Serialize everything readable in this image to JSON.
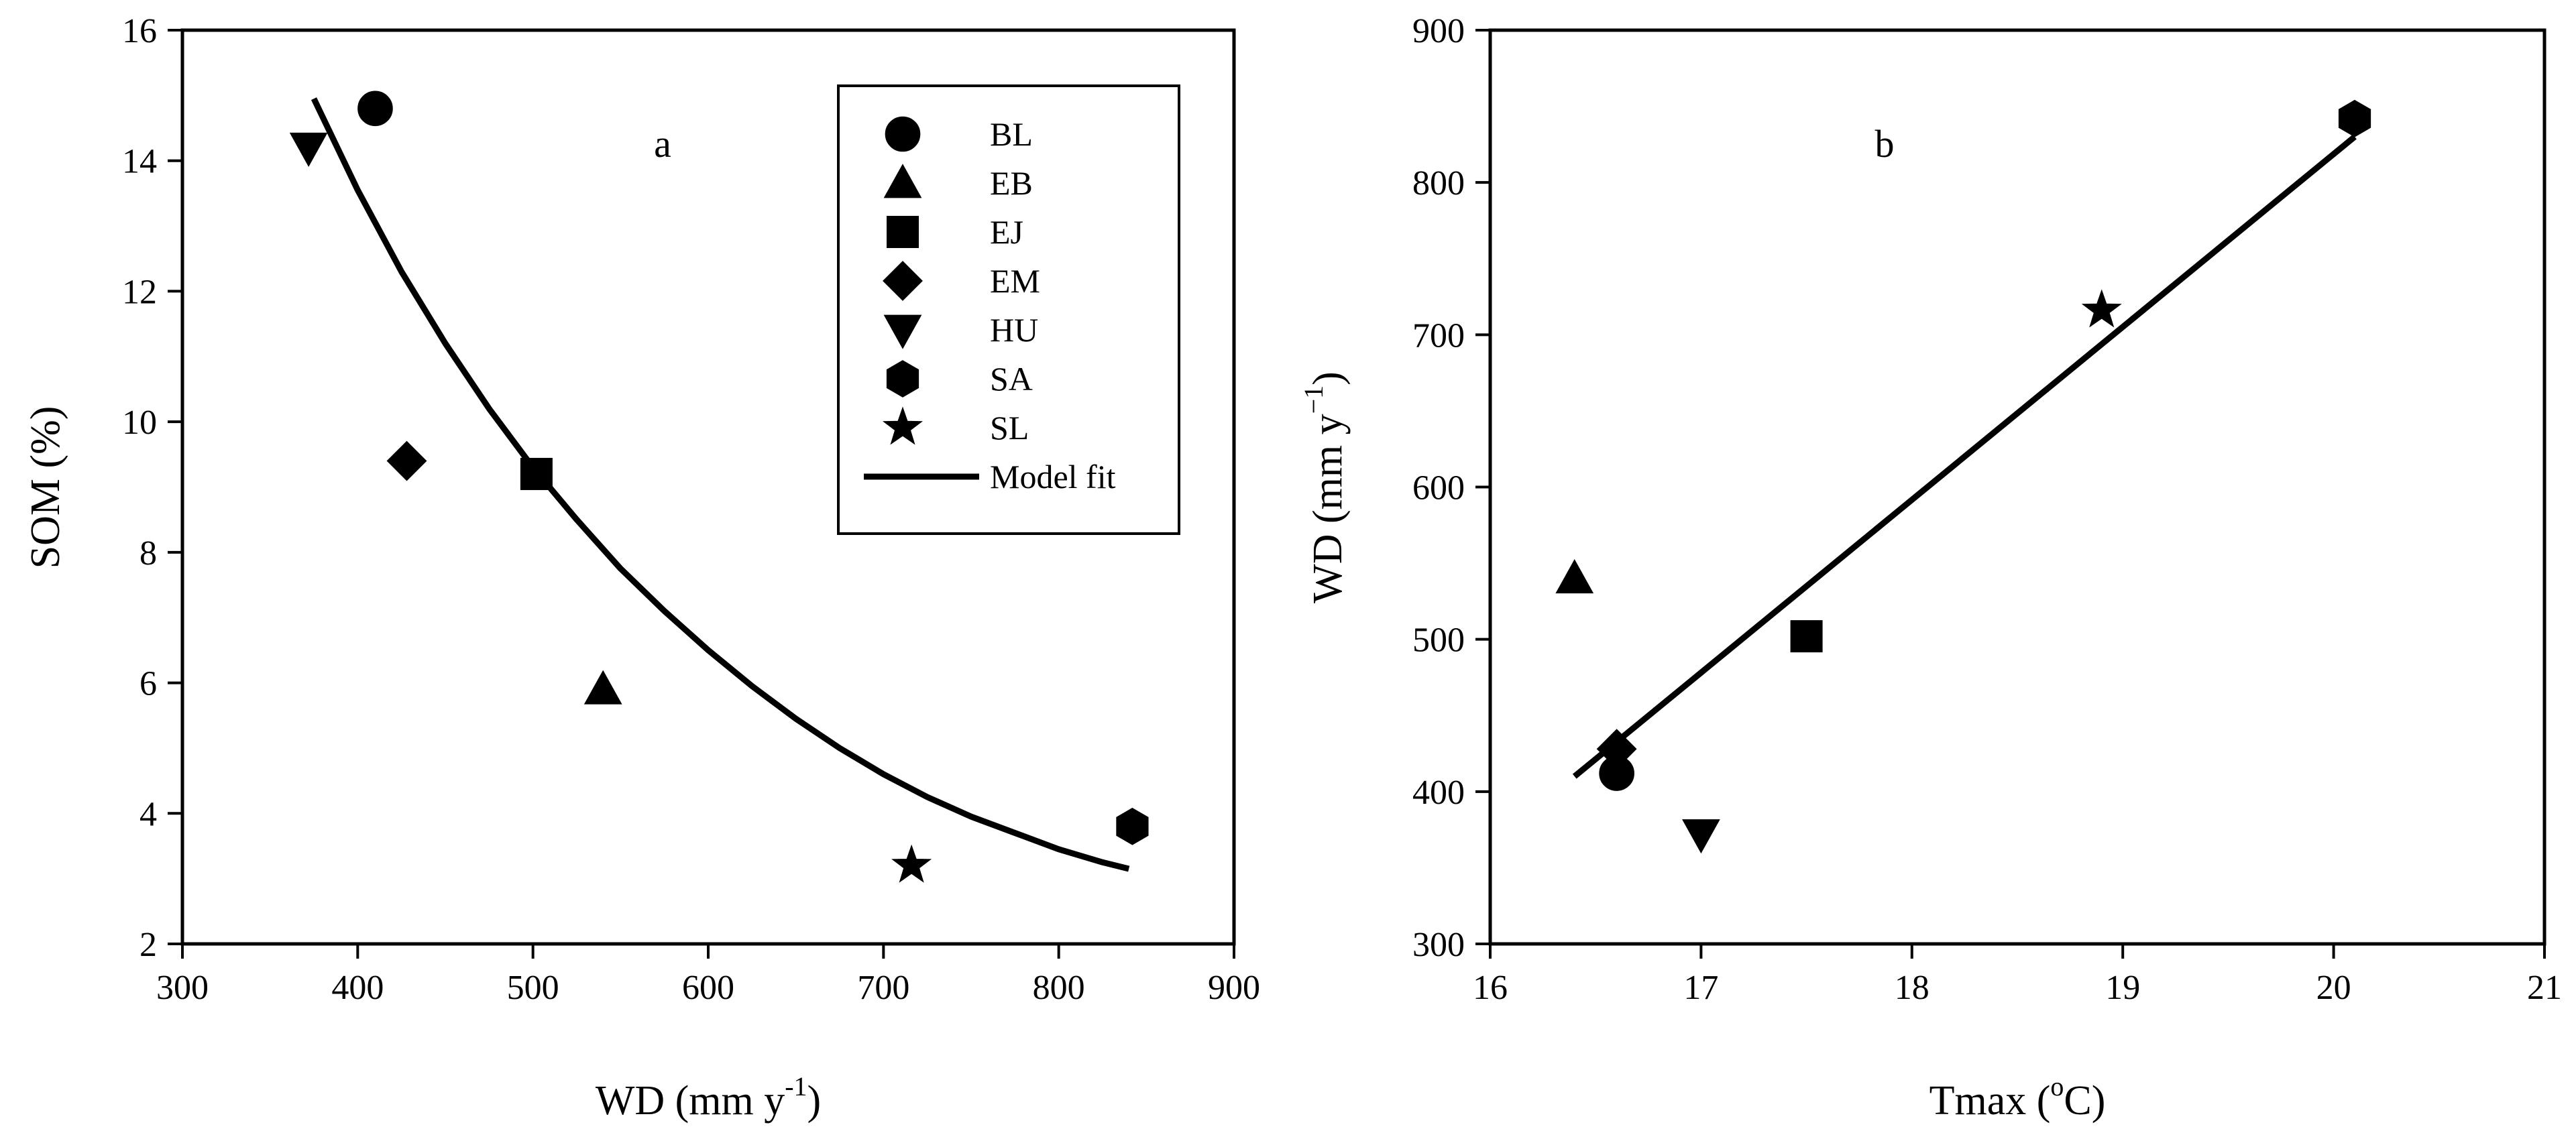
{
  "chart_data": [
    {
      "id": "a",
      "type": "scatter",
      "panel_label": "a",
      "xlabel": "WD (mm y",
      "xlabel_sup": "-1",
      "xlabel_end": ")",
      "ylabel": "SOM (%)",
      "xlim": [
        300,
        900
      ],
      "ylim": [
        2,
        16
      ],
      "xticks": [
        300,
        400,
        500,
        600,
        700,
        800,
        900
      ],
      "yticks": [
        2,
        4,
        6,
        8,
        10,
        12,
        14,
        16
      ],
      "points": [
        {
          "name": "BL",
          "marker": "circle",
          "x": 410,
          "y": 14.8
        },
        {
          "name": "EB",
          "marker": "triangle-up",
          "x": 540,
          "y": 5.9
        },
        {
          "name": "EJ",
          "marker": "square",
          "x": 502,
          "y": 9.2
        },
        {
          "name": "EM",
          "marker": "diamond",
          "x": 428,
          "y": 9.4
        },
        {
          "name": "HU",
          "marker": "triangle-down",
          "x": 372,
          "y": 14.2
        },
        {
          "name": "SA",
          "marker": "hexagon",
          "x": 842,
          "y": 3.8
        },
        {
          "name": "SL",
          "marker": "star",
          "x": 716,
          "y": 3.2
        }
      ],
      "fit": {
        "name": "Model fit",
        "x": [
          375,
          400,
          425,
          450,
          475,
          500,
          525,
          550,
          575,
          600,
          625,
          650,
          675,
          700,
          725,
          750,
          775,
          800,
          825,
          840
        ],
        "y": [
          14.95,
          13.55,
          12.3,
          11.2,
          10.2,
          9.3,
          8.5,
          7.75,
          7.1,
          6.5,
          5.95,
          5.45,
          5.0,
          4.6,
          4.25,
          3.95,
          3.7,
          3.45,
          3.25,
          3.15
        ]
      },
      "legend": {
        "position": "top-right",
        "entries": [
          {
            "label": "BL",
            "marker": "circle"
          },
          {
            "label": "EB",
            "marker": "triangle-up"
          },
          {
            "label": "EJ",
            "marker": "square"
          },
          {
            "label": "EM",
            "marker": "diamond"
          },
          {
            "label": "HU",
            "marker": "triangle-down"
          },
          {
            "label": "SA",
            "marker": "hexagon"
          },
          {
            "label": "SL",
            "marker": "star"
          },
          {
            "label": "Model fit",
            "marker": "line"
          }
        ]
      }
    },
    {
      "id": "b",
      "type": "scatter",
      "panel_label": "b",
      "xlabel": "Tmax (",
      "xlabel_sup": "o",
      "xlabel_end": "C)",
      "ylabel": "WD (mm y",
      "ylabel_sup": "−1",
      "ylabel_end": ")",
      "xlim": [
        16,
        21
      ],
      "ylim": [
        300,
        900
      ],
      "xticks": [
        16,
        17,
        18,
        19,
        20,
        21
      ],
      "yticks": [
        300,
        400,
        500,
        600,
        700,
        800,
        900
      ],
      "points": [
        {
          "name": "BL",
          "marker": "circle",
          "x": 16.6,
          "y": 412
        },
        {
          "name": "EB",
          "marker": "triangle-up",
          "x": 16.4,
          "y": 540
        },
        {
          "name": "EJ",
          "marker": "square",
          "x": 17.5,
          "y": 502
        },
        {
          "name": "EM",
          "marker": "diamond",
          "x": 16.6,
          "y": 428
        },
        {
          "name": "HU",
          "marker": "triangle-down",
          "x": 17.0,
          "y": 372
        },
        {
          "name": "SA",
          "marker": "hexagon",
          "x": 20.1,
          "y": 842
        },
        {
          "name": "SL",
          "marker": "star",
          "x": 18.9,
          "y": 716
        }
      ],
      "fit": {
        "name": "Model fit",
        "x": [
          16.4,
          20.1
        ],
        "y": [
          410,
          830
        ]
      }
    }
  ]
}
